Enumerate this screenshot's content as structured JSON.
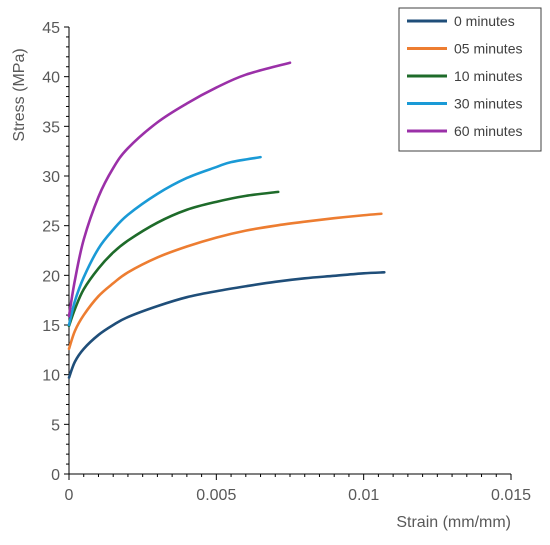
{
  "chart_data": {
    "type": "line",
    "title": "",
    "xlabel": "Strain (mm/mm)",
    "ylabel": "Stress (MPa)",
    "xlim": [
      0,
      0.015
    ],
    "ylim": [
      0,
      45
    ],
    "x_ticks": [
      0,
      0.005,
      0.01,
      0.015
    ],
    "x_tick_labels": [
      "0",
      "0.005",
      "0.01",
      "0.015"
    ],
    "y_ticks": [
      0,
      5,
      10,
      15,
      20,
      25,
      30,
      35,
      40,
      45
    ],
    "y_tick_labels": [
      "0",
      "5",
      "10",
      "15",
      "20",
      "25",
      "30",
      "35",
      "40",
      "45"
    ],
    "grid": false,
    "legend_position": "top-right",
    "series": [
      {
        "name": "0 minutes",
        "color": "#1f4e79",
        "points": [
          [
            0,
            9.7
          ],
          [
            0.0002,
            11.3
          ],
          [
            0.0005,
            12.6
          ],
          [
            0.001,
            14.0
          ],
          [
            0.0015,
            15.0
          ],
          [
            0.002,
            15.8
          ],
          [
            0.003,
            16.9
          ],
          [
            0.004,
            17.8
          ],
          [
            0.005,
            18.4
          ],
          [
            0.006,
            18.9
          ],
          [
            0.007,
            19.35
          ],
          [
            0.008,
            19.7
          ],
          [
            0.009,
            19.95
          ],
          [
            0.01,
            20.2
          ],
          [
            0.0107,
            20.3
          ]
        ]
      },
      {
        "name": "05 minutes",
        "color": "#ed7d31",
        "points": [
          [
            0,
            12.6
          ],
          [
            0.0002,
            14.4
          ],
          [
            0.0005,
            16.0
          ],
          [
            0.001,
            17.9
          ],
          [
            0.0015,
            19.2
          ],
          [
            0.002,
            20.3
          ],
          [
            0.003,
            21.8
          ],
          [
            0.004,
            22.9
          ],
          [
            0.005,
            23.8
          ],
          [
            0.006,
            24.5
          ],
          [
            0.007,
            25.0
          ],
          [
            0.008,
            25.4
          ],
          [
            0.009,
            25.75
          ],
          [
            0.01,
            26.05
          ],
          [
            0.0106,
            26.2
          ]
        ]
      },
      {
        "name": "10 minutes",
        "color": "#1e6b2a",
        "points": [
          [
            0,
            14.9
          ],
          [
            0.0002,
            16.6
          ],
          [
            0.0005,
            18.6
          ],
          [
            0.001,
            20.7
          ],
          [
            0.0015,
            22.3
          ],
          [
            0.002,
            23.5
          ],
          [
            0.003,
            25.3
          ],
          [
            0.004,
            26.6
          ],
          [
            0.005,
            27.4
          ],
          [
            0.006,
            28.0
          ],
          [
            0.0071,
            28.4
          ]
        ]
      },
      {
        "name": "30 minutes",
        "color": "#1a9ad6",
        "points": [
          [
            0,
            15.0
          ],
          [
            0.0002,
            17.4
          ],
          [
            0.0005,
            19.8
          ],
          [
            0.001,
            22.7
          ],
          [
            0.0015,
            24.6
          ],
          [
            0.002,
            26.1
          ],
          [
            0.003,
            28.2
          ],
          [
            0.004,
            29.8
          ],
          [
            0.005,
            30.9
          ],
          [
            0.0055,
            31.4
          ],
          [
            0.0065,
            31.9
          ]
        ]
      },
      {
        "name": "60 minutes",
        "color": "#9b30a8",
        "points": [
          [
            0,
            15.9
          ],
          [
            0.0002,
            19.5
          ],
          [
            0.0005,
            23.6
          ],
          [
            0.001,
            27.9
          ],
          [
            0.0015,
            30.8
          ],
          [
            0.002,
            32.8
          ],
          [
            0.003,
            35.4
          ],
          [
            0.004,
            37.3
          ],
          [
            0.005,
            38.9
          ],
          [
            0.006,
            40.2
          ],
          [
            0.0075,
            41.4
          ]
        ]
      }
    ]
  }
}
